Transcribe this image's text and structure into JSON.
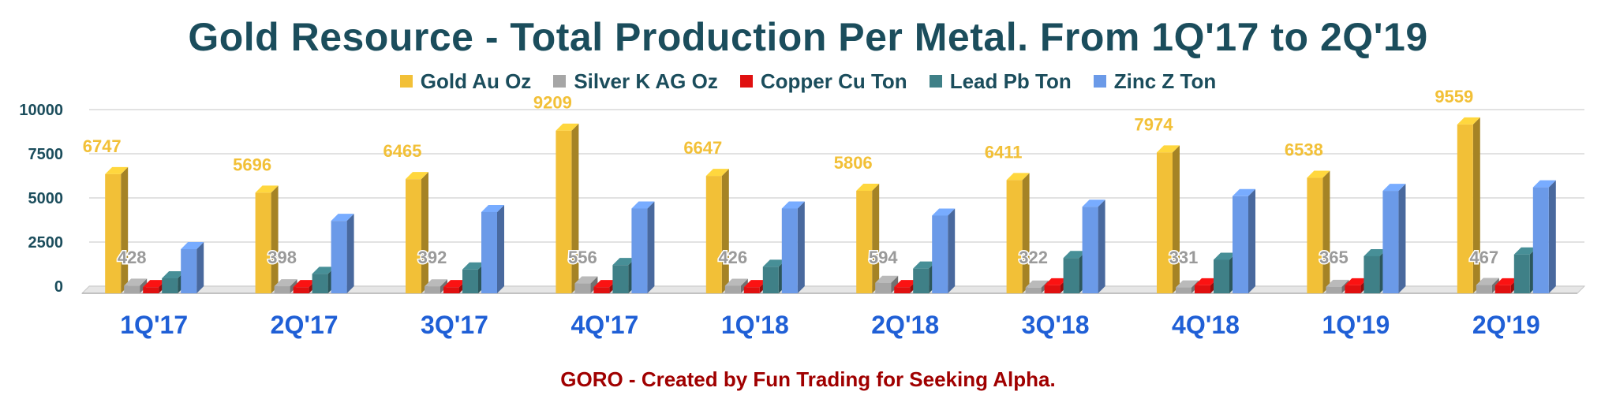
{
  "chart_data": {
    "type": "bar",
    "title": "Gold Resource - Total Production Per Metal. From 1Q'17 to 2Q'19",
    "categories": [
      "1Q'17",
      "2Q'17",
      "3Q'17",
      "4Q'17",
      "1Q'18",
      "2Q'18",
      "3Q'18",
      "4Q'18",
      "1Q'19",
      "2Q'19"
    ],
    "ylim": [
      0,
      10000
    ],
    "yticks": [
      "0",
      "2500",
      "5000",
      "7500",
      "10000"
    ],
    "ytick_values": [
      0,
      2500,
      5000,
      7500,
      10000
    ],
    "grid": true,
    "legend_position": "top",
    "series": [
      {
        "name": "Gold  Au Oz",
        "color": "#f2c037",
        "values": [
          6747,
          5696,
          6465,
          9209,
          6647,
          5806,
          6411,
          7974,
          6538,
          9559
        ],
        "labels": [
          "6747",
          "5696",
          "6465",
          "9209",
          "6647",
          "5806",
          "6411",
          "7974",
          "6538",
          "9559"
        ]
      },
      {
        "name": "Silver K AG Oz",
        "color": "#a6a6a6",
        "values": [
          428,
          398,
          392,
          556,
          426,
          594,
          322,
          331,
          365,
          467
        ],
        "labels": [
          "428",
          "398",
          "392",
          "556",
          "426",
          "594",
          "322",
          "331",
          "365",
          "467"
        ]
      },
      {
        "name": "Copper Cu Ton",
        "color": "#e01010",
        "values": [
          350,
          350,
          350,
          350,
          350,
          350,
          450,
          450,
          450,
          450
        ]
      },
      {
        "name": "Lead Pb Ton",
        "color": "#3f8087",
        "values": [
          850,
          1100,
          1350,
          1600,
          1500,
          1400,
          2000,
          1900,
          2100,
          2200
        ]
      },
      {
        "name": "Zinc Z Ton",
        "color": "#6b9ae8",
        "values": [
          2500,
          4100,
          4600,
          4800,
          4800,
          4400,
          4900,
          5500,
          5800,
          6000
        ]
      }
    ],
    "annotation": "GORO - Created by Fun Trading for Seeking Alpha."
  }
}
